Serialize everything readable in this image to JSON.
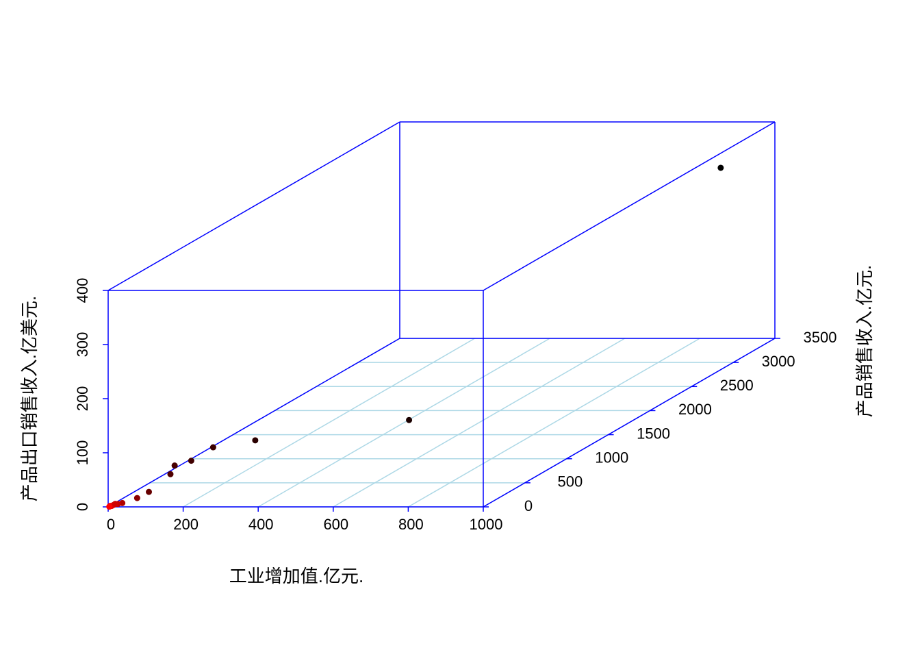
{
  "chart_data": {
    "type": "scatter3d",
    "xlabel": "工业增加值.亿元.",
    "ylabel": "产品销售收入.亿元.",
    "zlabel": "产品出口销售收入.亿美元.",
    "xlim": [
      0,
      1000
    ],
    "ylim": [
      0,
      3500
    ],
    "zlim": [
      0,
      400
    ],
    "xticks": [
      0,
      200,
      400,
      600,
      800,
      1000
    ],
    "yticks": [
      0,
      500,
      1000,
      1500,
      2000,
      2500,
      3000,
      3500
    ],
    "zticks": [
      0,
      100,
      200,
      300,
      400
    ],
    "grid": true,
    "box_color": "#0000ff",
    "grid_color": "#add8e6",
    "x": [
      900,
      469,
      170,
      80,
      66,
      44,
      55,
      42,
      44,
      20,
      15,
      5,
      3,
      8,
      2,
      10
    ],
    "y": [
      3300,
      1500,
      1000,
      900,
      700,
      600,
      500,
      300,
      150,
      80,
      50,
      20,
      10,
      30,
      5,
      40
    ],
    "z": [
      333,
      27,
      34,
      30,
      23,
      23,
      16,
      1,
      3,
      0,
      1,
      0,
      1,
      1,
      0,
      2
    ],
    "colors": [
      "#000000",
      "#1a0000",
      "#2a0000",
      "#3a0000",
      "#400000",
      "#480000",
      "#500000",
      "#660000",
      "#8a0000",
      "#b00000",
      "#c40000",
      "#e60000",
      "#f00000",
      "#dd0000",
      "#ff0000",
      "#d00000"
    ]
  }
}
